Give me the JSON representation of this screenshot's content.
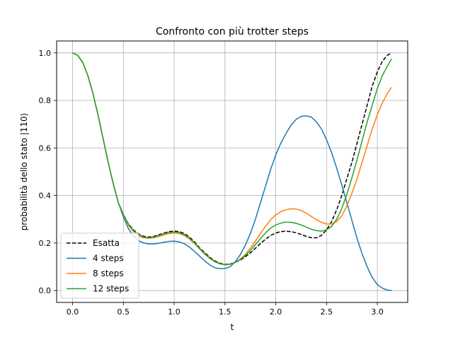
{
  "chart_data": {
    "type": "line",
    "title": "Confronto con più trotter steps",
    "xlabel": "t",
    "ylabel": "probabilità dello stato |110⟩",
    "xlim": [
      -0.157,
      3.299
    ],
    "ylim": [
      -0.05,
      1.05
    ],
    "xticks": [
      0.0,
      0.5,
      1.0,
      1.5,
      2.0,
      2.5,
      3.0
    ],
    "xtick_labels": [
      "0.0",
      "0.5",
      "1.0",
      "1.5",
      "2.0",
      "2.5",
      "3.0"
    ],
    "yticks": [
      0.0,
      0.2,
      0.4,
      0.6,
      0.8,
      1.0
    ],
    "ytick_labels": [
      "0.0",
      "0.2",
      "0.4",
      "0.6",
      "0.8",
      "1.0"
    ],
    "grid": true,
    "legend_position": "lower-left",
    "x": [
      0.0,
      0.05,
      0.1,
      0.15,
      0.2,
      0.25,
      0.3,
      0.35,
      0.4,
      0.45,
      0.5,
      0.55,
      0.6,
      0.65,
      0.7,
      0.75,
      0.8,
      0.85,
      0.9,
      0.95,
      1.0,
      1.05,
      1.1,
      1.15,
      1.2,
      1.25,
      1.3,
      1.35,
      1.4,
      1.45,
      1.5,
      1.55,
      1.6,
      1.65,
      1.7,
      1.75,
      1.8,
      1.85,
      1.9,
      1.95,
      2.0,
      2.05,
      2.1,
      2.15,
      2.2,
      2.25,
      2.3,
      2.35,
      2.4,
      2.45,
      2.5,
      2.55,
      2.6,
      2.65,
      2.7,
      2.75,
      2.8,
      2.85,
      2.9,
      2.95,
      3.0,
      3.05,
      3.1,
      3.14
    ],
    "series": [
      {
        "name": "Esatta",
        "color": "#000000",
        "dashed": true,
        "values": [
          1.0,
          0.99,
          0.96,
          0.905,
          0.83,
          0.74,
          0.64,
          0.54,
          0.45,
          0.37,
          0.32,
          0.28,
          0.255,
          0.238,
          0.228,
          0.225,
          0.228,
          0.235,
          0.242,
          0.248,
          0.25,
          0.248,
          0.24,
          0.225,
          0.205,
          0.18,
          0.16,
          0.14,
          0.125,
          0.115,
          0.11,
          0.112,
          0.118,
          0.128,
          0.142,
          0.158,
          0.178,
          0.198,
          0.216,
          0.232,
          0.242,
          0.248,
          0.25,
          0.248,
          0.243,
          0.236,
          0.228,
          0.222,
          0.222,
          0.232,
          0.255,
          0.29,
          0.34,
          0.4,
          0.47,
          0.54,
          0.62,
          0.7,
          0.78,
          0.86,
          0.92,
          0.965,
          0.99,
          1.0
        ]
      },
      {
        "name": "4 steps",
        "color": "#1f77b4",
        "dashed": false,
        "values": [
          1.0,
          0.99,
          0.96,
          0.905,
          0.83,
          0.74,
          0.64,
          0.54,
          0.45,
          0.37,
          0.31,
          0.26,
          0.23,
          0.21,
          0.2,
          0.196,
          0.196,
          0.199,
          0.203,
          0.207,
          0.208,
          0.205,
          0.197,
          0.183,
          0.165,
          0.145,
          0.125,
          0.108,
          0.096,
          0.092,
          0.093,
          0.1,
          0.12,
          0.15,
          0.19,
          0.24,
          0.3,
          0.37,
          0.44,
          0.51,
          0.57,
          0.62,
          0.66,
          0.695,
          0.72,
          0.733,
          0.735,
          0.73,
          0.71,
          0.68,
          0.635,
          0.58,
          0.515,
          0.445,
          0.37,
          0.295,
          0.22,
          0.155,
          0.1,
          0.055,
          0.025,
          0.01,
          0.002,
          0.0
        ]
      },
      {
        "name": "8 steps",
        "color": "#ff7f0e",
        "dashed": false,
        "values": [
          1.0,
          0.99,
          0.96,
          0.905,
          0.83,
          0.74,
          0.64,
          0.54,
          0.45,
          0.37,
          0.318,
          0.275,
          0.248,
          0.23,
          0.222,
          0.22,
          0.222,
          0.228,
          0.234,
          0.24,
          0.242,
          0.24,
          0.232,
          0.217,
          0.198,
          0.175,
          0.153,
          0.135,
          0.121,
          0.112,
          0.108,
          0.11,
          0.118,
          0.132,
          0.152,
          0.178,
          0.208,
          0.24,
          0.27,
          0.298,
          0.318,
          0.332,
          0.34,
          0.344,
          0.343,
          0.337,
          0.326,
          0.312,
          0.298,
          0.287,
          0.28,
          0.28,
          0.29,
          0.315,
          0.355,
          0.41,
          0.47,
          0.54,
          0.61,
          0.68,
          0.74,
          0.79,
          0.83,
          0.855
        ]
      },
      {
        "name": "12 steps",
        "color": "#2ca02c",
        "dashed": false,
        "values": [
          1.0,
          0.99,
          0.96,
          0.905,
          0.83,
          0.74,
          0.64,
          0.54,
          0.45,
          0.37,
          0.32,
          0.278,
          0.252,
          0.235,
          0.225,
          0.222,
          0.225,
          0.232,
          0.239,
          0.244,
          0.246,
          0.244,
          0.236,
          0.221,
          0.201,
          0.178,
          0.156,
          0.137,
          0.122,
          0.113,
          0.109,
          0.111,
          0.118,
          0.13,
          0.147,
          0.168,
          0.193,
          0.219,
          0.243,
          0.263,
          0.276,
          0.284,
          0.288,
          0.287,
          0.283,
          0.276,
          0.267,
          0.258,
          0.252,
          0.25,
          0.255,
          0.27,
          0.3,
          0.345,
          0.405,
          0.475,
          0.55,
          0.63,
          0.71,
          0.78,
          0.85,
          0.905,
          0.945,
          0.975
        ]
      }
    ]
  }
}
